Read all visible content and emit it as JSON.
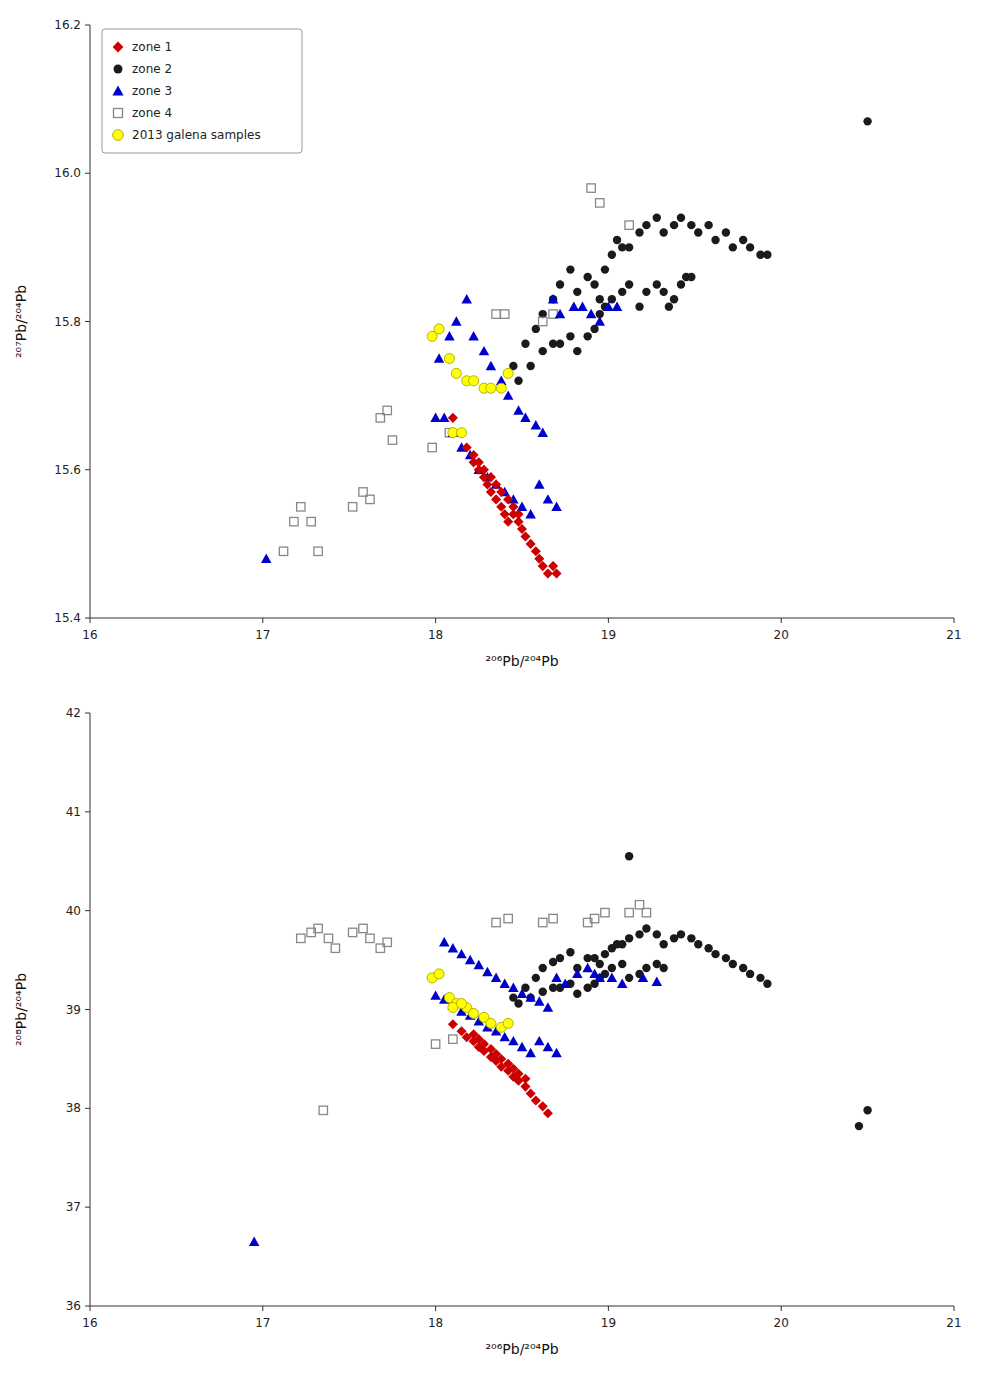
{
  "chart_data": [
    {
      "type": "scatter",
      "xlabel": "²⁰⁶Pb/²⁰⁴Pb",
      "ylabel": "²⁰⁷Pb/²⁰⁴Pb",
      "xlim": [
        16,
        21
      ],
      "ylim": [
        15.4,
        16.2
      ],
      "xticks": [
        16,
        17,
        18,
        19,
        20,
        21
      ],
      "yticks": [
        15.4,
        15.6,
        15.8,
        {
          "value": 16.0,
          "label": "16.0"
        },
        16.2
      ],
      "legend": "upper left",
      "series": [
        {
          "name": "zone 1",
          "color": "#cc0000",
          "marker": "diamond",
          "x": [
            18.1,
            18.15,
            18.18,
            18.22,
            18.25,
            18.28,
            18.3,
            18.32,
            18.35,
            18.38,
            18.4,
            18.42,
            18.45,
            18.48,
            18.5,
            18.52,
            18.55,
            18.58,
            18.6,
            18.62,
            18.65,
            18.68,
            18.7,
            18.22,
            18.25,
            18.28,
            18.32,
            18.35,
            18.38,
            18.42,
            18.45,
            18.48
          ],
          "values": [
            15.67,
            15.65,
            15.63,
            15.61,
            15.6,
            15.59,
            15.58,
            15.57,
            15.56,
            15.55,
            15.54,
            15.53,
            15.54,
            15.53,
            15.52,
            15.51,
            15.5,
            15.49,
            15.48,
            15.47,
            15.46,
            15.47,
            15.46,
            15.62,
            15.61,
            15.6,
            15.59,
            15.58,
            15.57,
            15.56,
            15.55,
            15.54
          ]
        },
        {
          "name": "zone 2",
          "color": "#1a1a1a",
          "marker": "circle",
          "x": [
            18.45,
            18.52,
            18.58,
            18.62,
            18.68,
            18.72,
            18.78,
            18.82,
            18.88,
            18.92,
            18.95,
            18.98,
            19.02,
            19.05,
            19.08,
            19.12,
            19.18,
            19.22,
            19.28,
            19.32,
            19.38,
            19.42,
            19.48,
            19.52,
            19.58,
            19.62,
            19.68,
            19.72,
            19.78,
            19.82,
            19.88,
            19.92,
            20.5,
            18.48,
            18.55,
            18.62,
            18.68,
            18.72,
            18.78,
            18.82,
            18.88,
            18.92,
            18.95,
            18.98,
            19.02,
            19.08,
            19.12,
            19.18,
            19.22,
            19.28,
            19.32,
            19.35,
            19.38,
            19.42,
            19.45,
            19.48
          ],
          "values": [
            15.74,
            15.77,
            15.79,
            15.81,
            15.83,
            15.85,
            15.87,
            15.84,
            15.86,
            15.85,
            15.83,
            15.87,
            15.89,
            15.91,
            15.9,
            15.9,
            15.92,
            15.93,
            15.94,
            15.92,
            15.93,
            15.94,
            15.93,
            15.92,
            15.93,
            15.91,
            15.92,
            15.9,
            15.91,
            15.9,
            15.89,
            15.89,
            16.07,
            15.72,
            15.74,
            15.76,
            15.77,
            15.77,
            15.78,
            15.76,
            15.78,
            15.79,
            15.81,
            15.82,
            15.83,
            15.84,
            15.85,
            15.82,
            15.84,
            15.85,
            15.84,
            15.82,
            15.83,
            15.85,
            15.86,
            15.86
          ]
        },
        {
          "name": "zone 3",
          "color": "#0000cc",
          "marker": "triangle",
          "x": [
            17.02,
            18.02,
            18.08,
            18.12,
            18.18,
            18.22,
            18.28,
            18.32,
            18.38,
            18.42,
            18.48,
            18.52,
            18.58,
            18.62,
            18.68,
            18.72,
            18.0,
            18.05,
            18.1,
            18.15,
            18.2,
            18.25,
            18.3,
            18.35,
            18.4,
            18.45,
            18.5,
            18.55,
            18.6,
            18.65,
            18.7,
            19.0,
            19.05,
            18.8,
            18.85,
            18.9,
            18.95
          ],
          "values": [
            15.48,
            15.75,
            15.78,
            15.8,
            15.83,
            15.78,
            15.76,
            15.74,
            15.72,
            15.7,
            15.68,
            15.67,
            15.66,
            15.65,
            15.83,
            15.81,
            15.67,
            15.67,
            15.65,
            15.63,
            15.62,
            15.6,
            15.59,
            15.58,
            15.57,
            15.56,
            15.55,
            15.54,
            15.58,
            15.56,
            15.55,
            15.82,
            15.82,
            15.82,
            15.82,
            15.81,
            15.8
          ]
        },
        {
          "name": "zone 4",
          "color": "#888888",
          "marker": "square-open",
          "x": [
            17.12,
            17.18,
            17.22,
            17.28,
            17.32,
            17.52,
            17.58,
            17.62,
            17.68,
            17.72,
            17.75,
            17.98,
            18.08,
            18.35,
            18.4,
            18.62,
            18.68,
            18.9,
            18.95,
            19.12
          ],
          "values": [
            15.49,
            15.53,
            15.55,
            15.53,
            15.49,
            15.55,
            15.57,
            15.56,
            15.67,
            15.68,
            15.64,
            15.63,
            15.65,
            15.81,
            15.81,
            15.8,
            15.81,
            15.98,
            15.96,
            15.93
          ]
        },
        {
          "name": "2013 galena samples",
          "color": "#ffff00",
          "marker": "circle",
          "x": [
            17.98,
            18.02,
            18.08,
            18.12,
            18.18,
            18.22,
            18.28,
            18.32,
            18.38,
            18.42,
            18.1,
            18.15
          ],
          "values": [
            15.78,
            15.79,
            15.75,
            15.73,
            15.72,
            15.72,
            15.71,
            15.71,
            15.71,
            15.73,
            15.65,
            15.65
          ]
        }
      ]
    },
    {
      "type": "scatter",
      "xlabel": "²⁰⁶Pb/²⁰⁴Pb",
      "ylabel": "²⁰⁸Pb/²⁰⁴Pb",
      "xlim": [
        16,
        21
      ],
      "ylim": [
        36,
        42
      ],
      "xticks": [
        16,
        17,
        18,
        19,
        20,
        21
      ],
      "yticks": [
        36,
        37,
        38,
        39,
        40,
        41,
        42
      ],
      "series": [
        {
          "color": "#cc0000",
          "marker": "diamond",
          "x": [
            18.1,
            18.15,
            18.18,
            18.22,
            18.25,
            18.28,
            18.32,
            18.35,
            18.38,
            18.42,
            18.45,
            18.48,
            18.52,
            18.55,
            18.58,
            18.62,
            18.65,
            18.22,
            18.25,
            18.28,
            18.32,
            18.35,
            18.38,
            18.42,
            18.45,
            18.48,
            18.52
          ],
          "values": [
            38.85,
            38.78,
            38.72,
            38.68,
            38.62,
            38.58,
            38.52,
            38.48,
            38.42,
            38.38,
            38.32,
            38.28,
            38.22,
            38.15,
            38.08,
            38.02,
            37.95,
            38.75,
            38.7,
            38.65,
            38.6,
            38.55,
            38.5,
            38.45,
            38.4,
            38.35,
            38.3
          ]
        },
        {
          "color": "#1a1a1a",
          "marker": "circle",
          "x": [
            18.45,
            18.52,
            18.58,
            18.62,
            18.68,
            18.72,
            18.78,
            18.82,
            18.88,
            18.92,
            18.95,
            18.98,
            19.02,
            19.05,
            19.08,
            19.12,
            19.18,
            19.22,
            19.28,
            19.32,
            19.38,
            19.42,
            19.48,
            19.52,
            19.58,
            19.62,
            19.68,
            19.72,
            19.78,
            19.82,
            19.88,
            19.92,
            20.5,
            20.45,
            18.48,
            18.55,
            18.62,
            18.68,
            18.72,
            18.78,
            18.82,
            18.88,
            18.92,
            18.95,
            18.98,
            19.02,
            19.08,
            19.12,
            19.18,
            19.22,
            19.28,
            19.32,
            19.12
          ],
          "values": [
            39.12,
            39.22,
            39.32,
            39.42,
            39.48,
            39.52,
            39.58,
            39.42,
            39.52,
            39.52,
            39.46,
            39.56,
            39.62,
            39.66,
            39.66,
            39.72,
            39.76,
            39.82,
            39.76,
            39.66,
            39.72,
            39.76,
            39.72,
            39.66,
            39.62,
            39.56,
            39.52,
            39.46,
            39.42,
            39.36,
            39.32,
            39.26,
            37.98,
            37.82,
            39.06,
            39.12,
            39.18,
            39.22,
            39.22,
            39.26,
            39.16,
            39.22,
            39.26,
            39.32,
            39.36,
            39.42,
            39.46,
            39.32,
            39.36,
            39.42,
            39.46,
            39.42,
            40.55
          ]
        },
        {
          "color": "#0000cc",
          "marker": "triangle",
          "x": [
            16.95,
            18.05,
            18.1,
            18.15,
            18.2,
            18.25,
            18.3,
            18.35,
            18.4,
            18.45,
            18.5,
            18.55,
            18.6,
            18.65,
            18.7,
            18.75,
            18.0,
            18.05,
            18.1,
            18.15,
            18.2,
            18.25,
            18.3,
            18.35,
            18.4,
            18.45,
            18.5,
            18.55,
            18.6,
            18.65,
            18.7,
            19.02,
            19.08,
            18.82,
            18.88,
            18.92,
            18.95,
            19.2,
            19.28
          ],
          "values": [
            36.65,
            39.68,
            39.62,
            39.56,
            39.5,
            39.45,
            39.38,
            39.32,
            39.26,
            39.22,
            39.16,
            39.12,
            39.08,
            39.02,
            39.32,
            39.26,
            39.14,
            39.1,
            39.04,
            38.98,
            38.94,
            38.88,
            38.82,
            38.78,
            38.72,
            38.68,
            38.62,
            38.56,
            38.68,
            38.62,
            38.56,
            39.32,
            39.26,
            39.36,
            39.42,
            39.36,
            39.32,
            39.32,
            39.28
          ]
        },
        {
          "color": "#888888",
          "marker": "square-open",
          "x": [
            17.22,
            17.28,
            17.32,
            17.38,
            17.42,
            17.52,
            17.58,
            17.62,
            17.68,
            17.72,
            17.35,
            18.0,
            18.1,
            18.35,
            18.42,
            18.62,
            18.68,
            18.88,
            18.92,
            18.98,
            19.12,
            19.18,
            19.22
          ],
          "values": [
            39.72,
            39.78,
            39.82,
            39.72,
            39.62,
            39.78,
            39.82,
            39.72,
            39.62,
            39.68,
            37.98,
            38.65,
            38.7,
            39.88,
            39.92,
            39.88,
            39.92,
            39.88,
            39.92,
            39.98,
            39.98,
            40.06,
            39.98
          ]
        },
        {
          "color": "#ffff00",
          "marker": "circle",
          "x": [
            17.98,
            18.02,
            18.08,
            18.12,
            18.18,
            18.22,
            18.28,
            18.32,
            18.38,
            18.42,
            18.1,
            18.15
          ],
          "values": [
            39.32,
            39.36,
            39.12,
            39.06,
            39.02,
            38.96,
            38.92,
            38.86,
            38.82,
            38.86,
            39.02,
            39.06
          ]
        }
      ]
    }
  ]
}
